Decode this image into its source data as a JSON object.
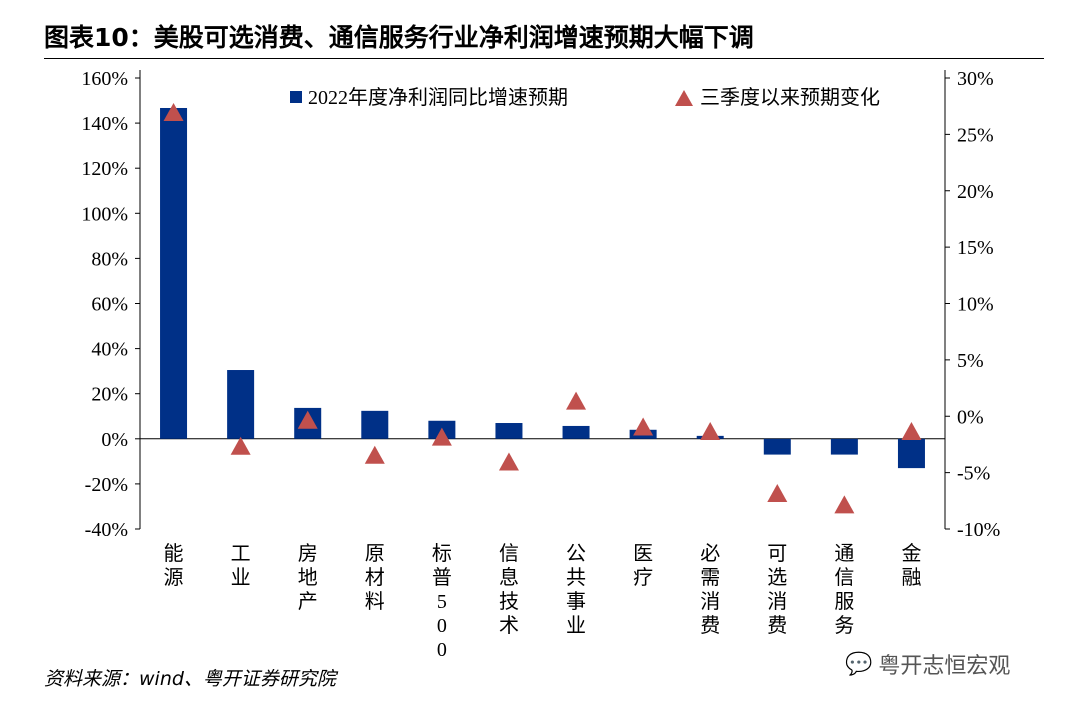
{
  "title": "图表10：美股可选消费、通信服务行业净利润增速预期大幅下调",
  "source": "资料来源：wind、粤开证券研究院",
  "watermark": "粤开志恒宏观",
  "chart_data": {
    "type": "bar",
    "categories": [
      "能源",
      "工业",
      "房地产",
      "原材料",
      "标普500",
      "信息技术",
      "公共事业",
      "医疗",
      "必需消费",
      "可选消费",
      "通信服务",
      "金融"
    ],
    "series": [
      {
        "name": "2022年度净利润同比增速预期",
        "axis": "left",
        "type": "bar",
        "color": "#003087",
        "values": [
          146.7,
          30.5,
          13.7,
          12.4,
          8,
          7,
          5.7,
          4,
          1.3,
          -7,
          -7,
          -13
        ]
      },
      {
        "name": "三季度以来预期变化",
        "axis": "right",
        "type": "scatter",
        "marker": "triangle",
        "color": "#C0504D",
        "values": [
          26.9,
          -2.7,
          -0.4,
          -3.5,
          -1.9,
          -4.1,
          1.3,
          -1.0,
          -1.4,
          -6.9,
          -7.9,
          -1.4
        ]
      }
    ],
    "ylim_left": [
      -40,
      160
    ],
    "yticks_left": [
      "-40%",
      "-20%",
      "0%",
      "20%",
      "40%",
      "60%",
      "80%",
      "100%",
      "120%",
      "140%",
      "160%"
    ],
    "ylim_right": [
      -10,
      30
    ],
    "yticks_right": [
      "-10%",
      "-5%",
      "0%",
      "5%",
      "10%",
      "15%",
      "20%",
      "25%",
      "30%"
    ],
    "legend_position": "top"
  }
}
